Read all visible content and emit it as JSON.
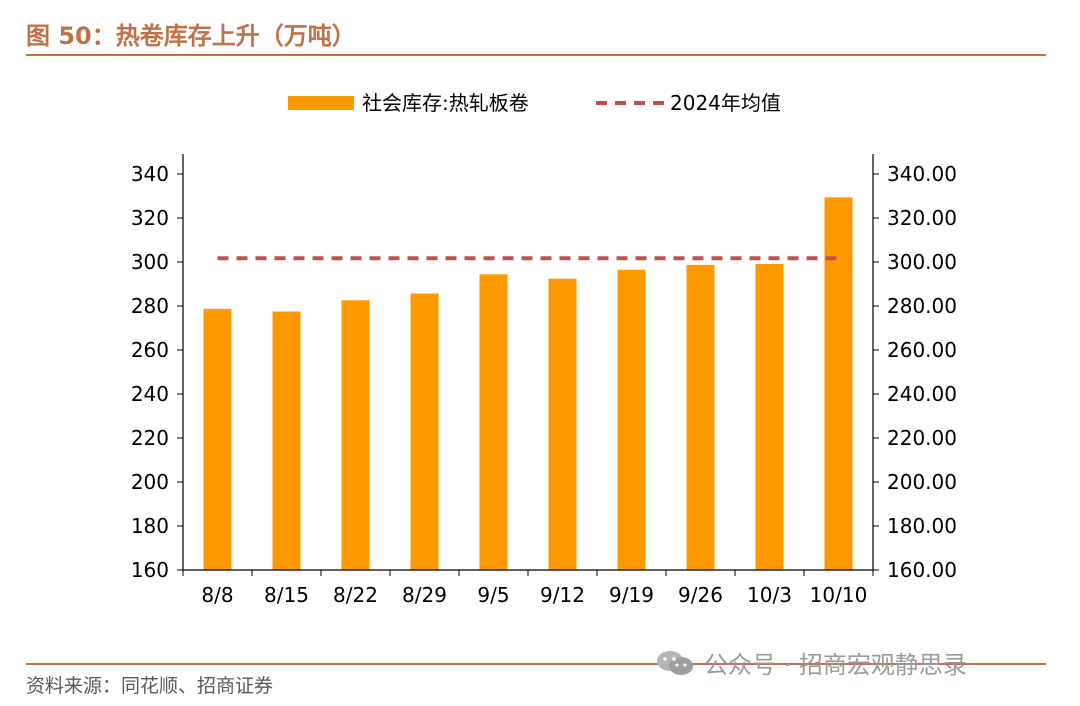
{
  "figure": {
    "title": "图 50：热卷库存上升（万吨）",
    "source": "资料来源：同花顺、招商证券",
    "watermark": "公众号 · 招商宏观静思录",
    "watermark_icon": "wechat-icon"
  },
  "chart_data": {
    "type": "bar",
    "title": "",
    "xlabel": "",
    "ylabel": "",
    "categories": [
      "8/8",
      "8/15",
      "8/22",
      "8/29",
      "9/5",
      "9/12",
      "9/19",
      "9/26",
      "10/3",
      "10/10"
    ],
    "series": [
      {
        "name": "社会库存:热轧板卷",
        "type": "bar",
        "color": "#ff9900",
        "values": [
          278.7,
          277.5,
          282.6,
          285.7,
          294.4,
          292.4,
          296.5,
          298.7,
          299.1,
          329.4
        ]
      },
      {
        "name": "2024年均值",
        "type": "line",
        "style": "dashed",
        "color": "#c0504d",
        "values": [
          301.7,
          301.7,
          301.7,
          301.7,
          301.7,
          301.7,
          301.7,
          301.7,
          301.7,
          301.7
        ]
      }
    ],
    "ylim": [
      160,
      340
    ],
    "yticks": [
      160,
      180,
      200,
      220,
      240,
      260,
      280,
      300,
      320,
      340
    ],
    "y2lim": [
      160,
      340
    ],
    "y2ticks": [
      "160.00",
      "180.00",
      "200.00",
      "220.00",
      "240.00",
      "260.00",
      "280.00",
      "300.00",
      "320.00",
      "340.00"
    ],
    "grid": false,
    "legend": "top-center"
  }
}
